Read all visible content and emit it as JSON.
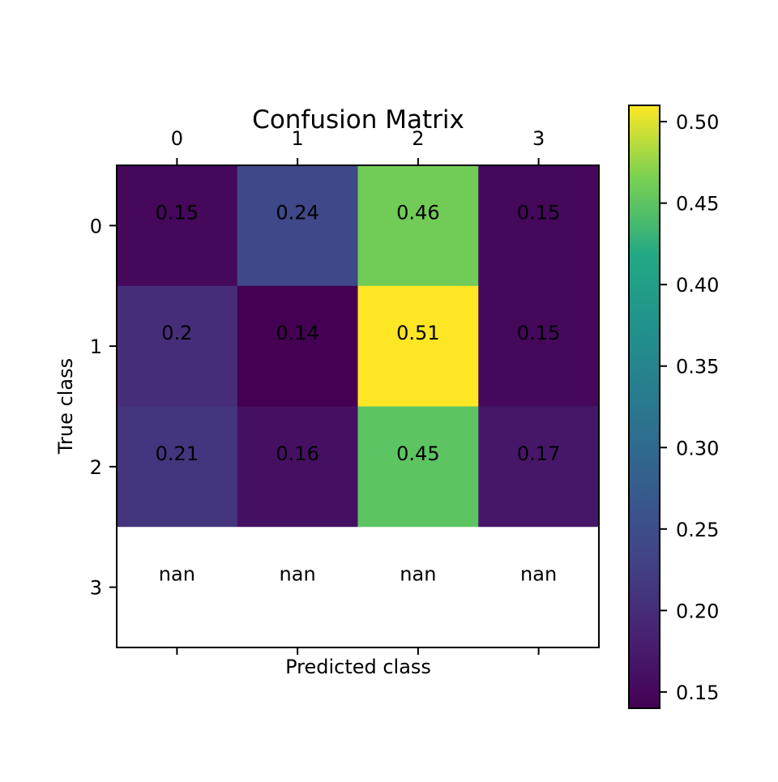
{
  "chart_data": {
    "type": "heatmap",
    "title": "Confusion Matrix",
    "xlabel": "Predicted class",
    "ylabel": "True class",
    "x_categories": [
      "0",
      "1",
      "2",
      "3"
    ],
    "y_categories": [
      "0",
      "1",
      "2",
      "3"
    ],
    "x_tick_position": "top",
    "values": [
      [
        0.15,
        0.24,
        0.46,
        0.15
      ],
      [
        0.2,
        0.14,
        0.51,
        0.15
      ],
      [
        0.21,
        0.16,
        0.45,
        0.17
      ],
      [
        null,
        null,
        null,
        null
      ]
    ],
    "cell_labels": [
      [
        "0.15",
        "0.24",
        "0.46",
        "0.15"
      ],
      [
        "0.2",
        "0.14",
        "0.51",
        "0.15"
      ],
      [
        "0.21",
        "0.16",
        "0.45",
        "0.17"
      ],
      [
        "nan",
        "nan",
        "nan",
        "nan"
      ]
    ],
    "colormap": "viridis",
    "colorbar": {
      "range": [
        0.14,
        0.51
      ],
      "ticks": [
        0.15,
        0.2,
        0.25,
        0.3,
        0.35,
        0.4,
        0.45,
        0.5
      ],
      "tick_labels": [
        "0.15",
        "0.20",
        "0.25",
        "0.30",
        "0.35",
        "0.40",
        "0.45",
        "0.50"
      ]
    },
    "nan_color": "#ffffff",
    "grid": false
  }
}
